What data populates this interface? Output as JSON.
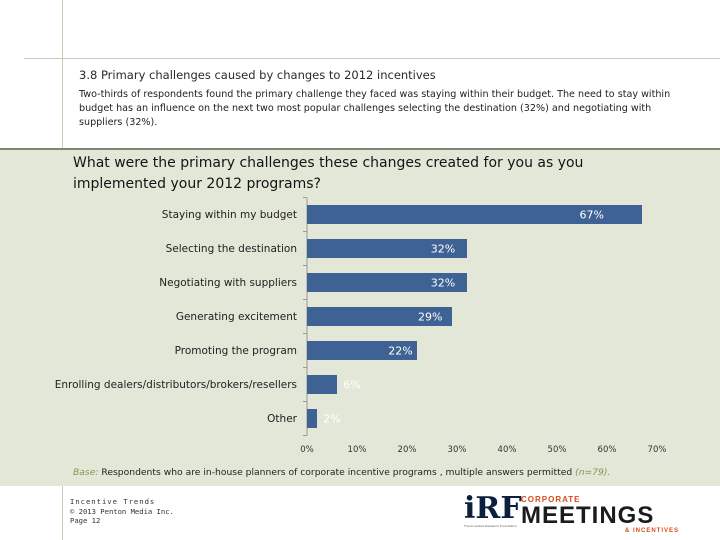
{
  "page": {
    "section_title": "3.8 Primary challenges caused by changes to 2012 incentives",
    "intro": "Two-thirds of respondents found the primary challenge they faced was staying within their budget. The need to stay within budget has an influence on the next two most popular challenges selecting the destination (32%) and negotiating with suppliers (32%).",
    "question": "What were the primary challenges these changes created for you as you implemented your 2012 programs?",
    "base_label": "Base:",
    "base_text": " Respondents who are in-house planners of corporate incentive programs , multiple answers permitted ",
    "base_n": "(n=79).",
    "footer": {
      "brand": "Incentive Trends",
      "copyright": "© 2013 Penton Media Inc.",
      "page": "Page 12"
    },
    "logos": {
      "irf": "iRF",
      "irf_sub": "The Incentive Research Foundation",
      "cm_top": "CORPORATE",
      "cm_main": "MEETINGS",
      "cm_bottom": "& INCENTIVES"
    }
  },
  "colors": {
    "bar": "#3e6294",
    "label": "#1e1e1e",
    "accent": "#8a9451"
  },
  "chart_data": {
    "type": "bar",
    "orientation": "horizontal",
    "title": "What were the primary challenges these changes created for you as you implemented your 2012 programs?",
    "categories": [
      "Staying within my budget",
      "Selecting the destination",
      "Negotiating with suppliers",
      "Generating excitement",
      "Promoting the program",
      "Enrolling dealers/distributors/brokers/resellers",
      "Other"
    ],
    "values": [
      67,
      32,
      32,
      29,
      22,
      6,
      2
    ],
    "data_labels": [
      "67%",
      "32%",
      "32%",
      "29%",
      "22%",
      "6%",
      "2%"
    ],
    "xlim": [
      0,
      70
    ],
    "x_ticks": [
      0,
      10,
      20,
      30,
      40,
      50,
      60,
      70
    ],
    "x_tick_labels": [
      "0%",
      "10%",
      "20%",
      "30%",
      "40%",
      "50%",
      "60%",
      "70%"
    ],
    "grid": false,
    "xlabel": "",
    "ylabel": ""
  }
}
